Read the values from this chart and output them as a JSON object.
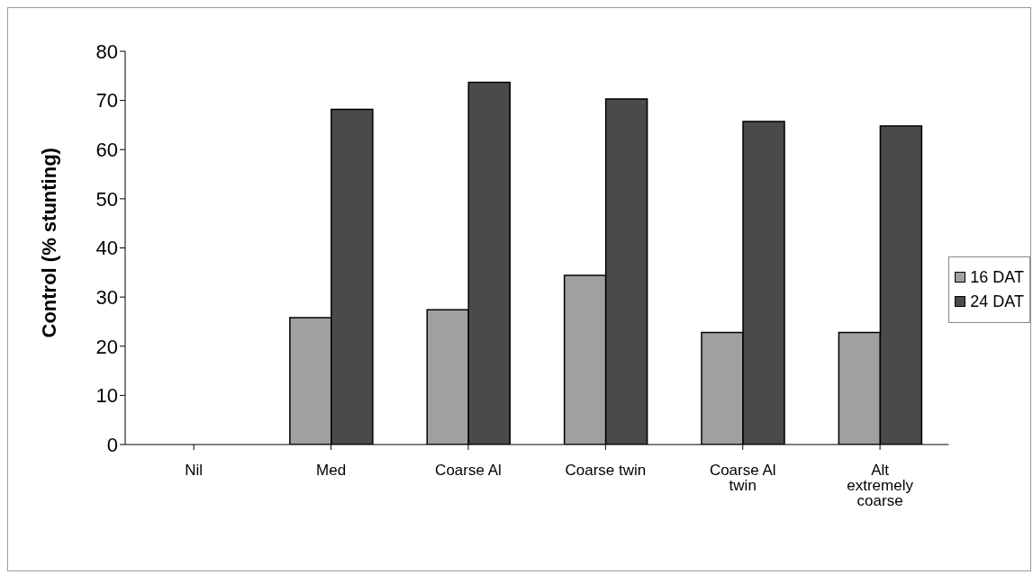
{
  "chart_data": {
    "type": "bar",
    "ylabel": "Control (% stunting)",
    "categories": [
      "Nil",
      "Med",
      "Coarse Al",
      "Coarse twin",
      "Coarse Al twin",
      "Alt extremely coarse"
    ],
    "series": [
      {
        "name": "16 DAT",
        "color": "#a0a0a0",
        "values": [
          0,
          25.8,
          27.4,
          34.4,
          22.8,
          22.8
        ]
      },
      {
        "name": "24 DAT",
        "color": "#4a4a4a",
        "values": [
          0,
          68.2,
          73.7,
          70.3,
          65.7,
          64.8
        ]
      }
    ],
    "ylim": [
      0,
      80
    ],
    "yticks": [
      0,
      10,
      20,
      30,
      40,
      50,
      60,
      70,
      80
    ],
    "grid": false,
    "legend": "right"
  }
}
